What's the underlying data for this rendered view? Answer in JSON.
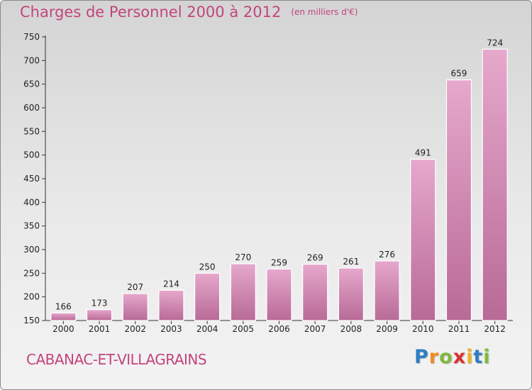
{
  "chart_data": {
    "type": "bar",
    "title": "Charges de Personnel 2000 à 2012",
    "subtitle": "(en milliers d'€)",
    "categories": [
      "2000",
      "2001",
      "2002",
      "2003",
      "2004",
      "2005",
      "2006",
      "2007",
      "2008",
      "2009",
      "2010",
      "2011",
      "2012"
    ],
    "values": [
      166,
      173,
      207,
      214,
      250,
      270,
      259,
      269,
      261,
      276,
      491,
      659,
      724
    ],
    "ylim": [
      150,
      750
    ],
    "yticks": [
      150,
      200,
      250,
      300,
      350,
      400,
      450,
      500,
      550,
      600,
      650,
      700,
      750
    ],
    "grid": false,
    "bar_color": "#d27fae"
  },
  "footer": {
    "commune": "CABANAC-ET-VILLAGRAINS",
    "brand": [
      "P",
      "r",
      "o",
      "x",
      "i",
      "t",
      "i"
    ],
    "brand_colors": [
      "#2f7ec2",
      "#f08c1c",
      "#7fb93a",
      "#d8322f",
      "#f0b21c",
      "#2f7ec2",
      "#7fb93a"
    ]
  }
}
